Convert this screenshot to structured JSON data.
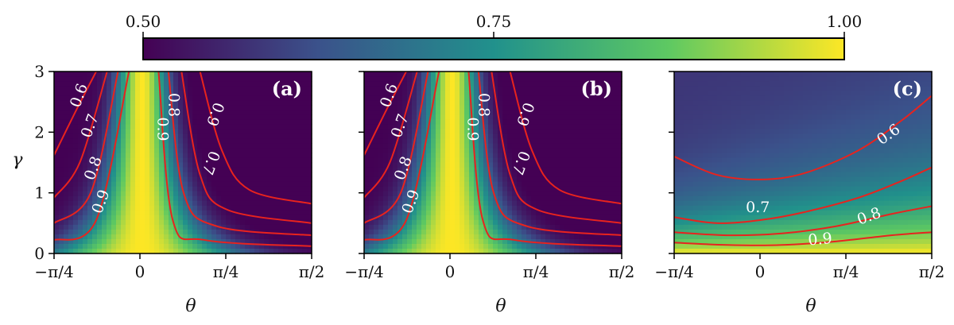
{
  "chart_data": {
    "type": "heatmap",
    "colorbar": {
      "min": 0.5,
      "max": 1.0,
      "ticks": [
        {
          "value": 0.5,
          "label": "0.50"
        },
        {
          "value": 0.75,
          "label": "0.75"
        },
        {
          "value": 1.0,
          "label": "1.00"
        }
      ],
      "colormap": [
        "#440154",
        "#3b528b",
        "#21918c",
        "#5ec962",
        "#fde725"
      ]
    },
    "shared_axes": {
      "xlabel": "θ",
      "ylabel": "γ",
      "xlim": [
        -0.7854,
        1.5708
      ],
      "ylim": [
        0,
        3
      ],
      "xticks": [
        {
          "value": -0.7854,
          "label": "−π/4"
        },
        {
          "value": 0,
          "label": "0"
        },
        {
          "value": 0.7854,
          "label": "π/4"
        },
        {
          "value": 1.5708,
          "label": "π/2"
        }
      ],
      "yticks": [
        {
          "value": 0,
          "label": "0"
        },
        {
          "value": 1,
          "label": "1"
        },
        {
          "value": 2,
          "label": "2"
        },
        {
          "value": 3,
          "label": "3"
        }
      ]
    },
    "panels": [
      {
        "label": "(a)",
        "field": "peak",
        "contours": [
          {
            "level": 0.6,
            "label": "0.6",
            "left": [
              [
                -0.7854,
                1.62
              ],
              [
                -0.6,
                2.3
              ],
              [
                -0.4,
                3.0
              ]
            ],
            "right": [
              [
                0.55,
                3.0
              ],
              [
                0.75,
                1.7
              ],
              [
                1.0,
                1.05
              ],
              [
                1.5708,
                0.82
              ]
            ]
          },
          {
            "level": 0.7,
            "label": "0.7",
            "left": [
              [
                -0.7854,
                0.92
              ],
              [
                -0.55,
                1.5
              ],
              [
                -0.3,
                3.0
              ]
            ],
            "right": [
              [
                0.38,
                3.0
              ],
              [
                0.55,
                1.3
              ],
              [
                0.8,
                0.72
              ],
              [
                1.5708,
                0.5
              ]
            ]
          },
          {
            "level": 0.8,
            "label": "0.8",
            "left": [
              [
                -0.7854,
                0.5
              ],
              [
                -0.45,
                1.0
              ],
              [
                -0.2,
                3.0
              ]
            ],
            "right": [
              [
                0.26,
                3.0
              ],
              [
                0.4,
                1.0
              ],
              [
                0.7,
                0.45
              ],
              [
                1.5708,
                0.3
              ]
            ]
          },
          {
            "level": 0.9,
            "label": "0.9",
            "left": [
              [
                -0.7854,
                0.22
              ],
              [
                -0.4,
                0.55
              ],
              [
                -0.1,
                3.0
              ]
            ],
            "right": [
              [
                0.17,
                3.0
              ],
              [
                0.3,
                0.55
              ],
              [
                0.6,
                0.22
              ],
              [
                1.5708,
                0.12
              ]
            ]
          }
        ],
        "contour_labels": [
          {
            "text": "0.6",
            "x": -0.55,
            "y": 2.6,
            "angle": -70
          },
          {
            "text": "0.7",
            "x": -0.45,
            "y": 2.1,
            "angle": -70
          },
          {
            "text": "0.8",
            "x": -0.42,
            "y": 1.4,
            "angle": -70
          },
          {
            "text": "0.9",
            "x": -0.35,
            "y": 0.85,
            "angle": -70
          },
          {
            "text": "0.8",
            "x": 0.3,
            "y": 2.45,
            "angle": 90
          },
          {
            "text": "0.9",
            "x": 0.2,
            "y": 2.05,
            "angle": 90
          },
          {
            "text": "0.9",
            "x": 0.68,
            "y": 2.3,
            "angle": 110
          },
          {
            "text": "0.7",
            "x": 0.64,
            "y": 1.5,
            "angle": 110
          }
        ]
      },
      {
        "label": "(b)",
        "field": "peak",
        "contours": [
          {
            "level": 0.6,
            "label": "0.6",
            "left": [
              [
                -0.7854,
                1.62
              ],
              [
                -0.6,
                2.3
              ],
              [
                -0.4,
                3.0
              ]
            ],
            "right": [
              [
                0.55,
                3.0
              ],
              [
                0.75,
                1.7
              ],
              [
                1.0,
                1.05
              ],
              [
                1.5708,
                0.82
              ]
            ]
          },
          {
            "level": 0.7,
            "label": "0.7",
            "left": [
              [
                -0.7854,
                0.92
              ],
              [
                -0.55,
                1.5
              ],
              [
                -0.3,
                3.0
              ]
            ],
            "right": [
              [
                0.38,
                3.0
              ],
              [
                0.55,
                1.3
              ],
              [
                0.8,
                0.72
              ],
              [
                1.5708,
                0.5
              ]
            ]
          },
          {
            "level": 0.8,
            "label": "0.8",
            "left": [
              [
                -0.7854,
                0.5
              ],
              [
                -0.45,
                1.0
              ],
              [
                -0.2,
                3.0
              ]
            ],
            "right": [
              [
                0.26,
                3.0
              ],
              [
                0.4,
                1.0
              ],
              [
                0.7,
                0.45
              ],
              [
                1.5708,
                0.3
              ]
            ]
          },
          {
            "level": 0.9,
            "label": "0.9",
            "left": [
              [
                -0.7854,
                0.22
              ],
              [
                -0.4,
                0.55
              ],
              [
                -0.1,
                3.0
              ]
            ],
            "right": [
              [
                0.17,
                3.0
              ],
              [
                0.3,
                0.55
              ],
              [
                0.6,
                0.22
              ],
              [
                1.5708,
                0.12
              ]
            ]
          }
        ],
        "contour_labels": [
          {
            "text": "0.6",
            "x": -0.55,
            "y": 2.6,
            "angle": -70
          },
          {
            "text": "0.7",
            "x": -0.45,
            "y": 2.1,
            "angle": -70
          },
          {
            "text": "0.8",
            "x": -0.42,
            "y": 1.4,
            "angle": -70
          },
          {
            "text": "0.9",
            "x": -0.35,
            "y": 0.85,
            "angle": -70
          },
          {
            "text": "0.8",
            "x": 0.3,
            "y": 2.45,
            "angle": 90
          },
          {
            "text": "0.9",
            "x": 0.2,
            "y": 2.05,
            "angle": 90
          },
          {
            "text": "0.9",
            "x": 0.68,
            "y": 2.3,
            "angle": 110
          },
          {
            "text": "0.7",
            "x": 0.64,
            "y": 1.5,
            "angle": 110
          }
        ]
      },
      {
        "label": "(c)",
        "field": "layered",
        "contours": [
          {
            "level": 0.6,
            "label": "0.6",
            "points": [
              [
                -0.7854,
                1.6
              ],
              [
                -0.4,
                1.3
              ],
              [
                0,
                1.22
              ],
              [
                0.4,
                1.32
              ],
              [
                0.9,
                1.7
              ],
              [
                1.3,
                2.2
              ],
              [
                1.5708,
                2.6
              ]
            ]
          },
          {
            "level": 0.7,
            "label": "0.7",
            "points": [
              [
                -0.7854,
                0.6
              ],
              [
                -0.4,
                0.5
              ],
              [
                0,
                0.55
              ],
              [
                0.4,
                0.68
              ],
              [
                0.9,
                0.92
              ],
              [
                1.3,
                1.2
              ],
              [
                1.5708,
                1.42
              ]
            ]
          },
          {
            "level": 0.8,
            "label": "0.8",
            "points": [
              [
                -0.7854,
                0.35
              ],
              [
                -0.3,
                0.3
              ],
              [
                0.2,
                0.33
              ],
              [
                0.7,
                0.45
              ],
              [
                1.2,
                0.65
              ],
              [
                1.5708,
                0.78
              ]
            ]
          },
          {
            "level": 0.9,
            "label": "0.9",
            "points": [
              [
                -0.7854,
                0.18
              ],
              [
                -0.3,
                0.14
              ],
              [
                0.2,
                0.14
              ],
              [
                0.7,
                0.2
              ],
              [
                1.2,
                0.3
              ],
              [
                1.5708,
                0.35
              ]
            ]
          }
        ],
        "contour_labels": [
          {
            "text": "0.6",
            "x": 1.18,
            "y": 1.95,
            "angle": -35
          },
          {
            "text": "0.7",
            "x": -0.02,
            "y": 0.75,
            "angle": 0
          },
          {
            "text": "0.8",
            "x": 1.0,
            "y": 0.6,
            "angle": -20
          },
          {
            "text": "0.9",
            "x": 0.55,
            "y": 0.22,
            "angle": -5
          }
        ]
      }
    ]
  }
}
